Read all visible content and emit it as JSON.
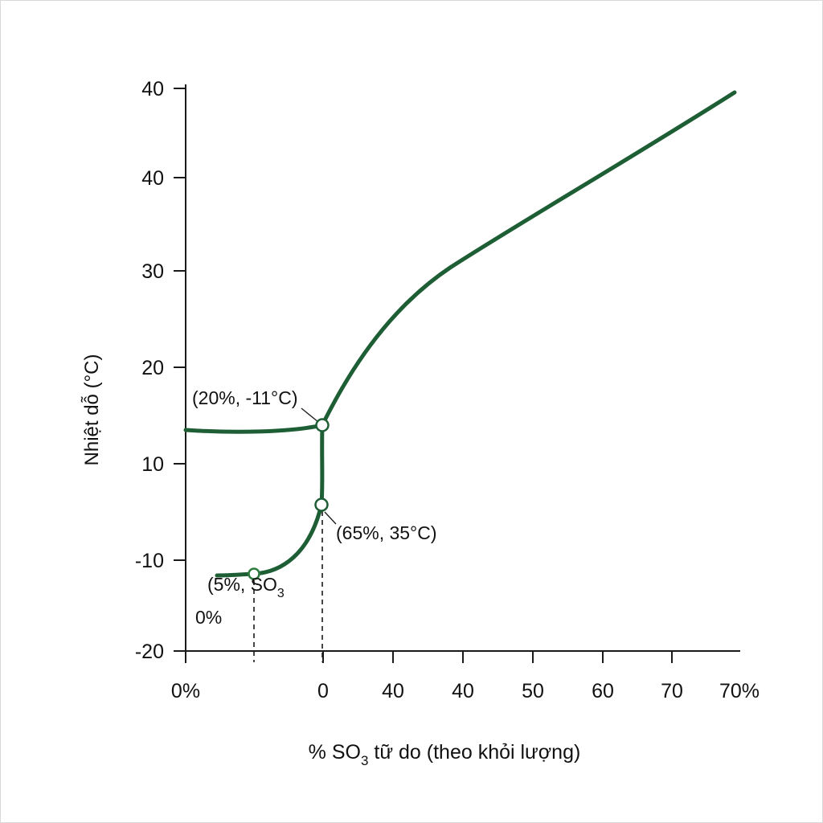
{
  "chart_data": {
    "type": "line",
    "xlabel_parts": {
      "pre": "% SO",
      "sub": "3",
      "post": " tữ do (theo khỏi lượng)"
    },
    "ylabel": "Nhiệt dỗ (°C)",
    "y_ticks": [
      "40",
      "40",
      "30",
      "20",
      "10",
      "-10",
      "-20"
    ],
    "x_ticks": [
      "0%",
      "",
      "0",
      "40",
      "40",
      "50",
      "60",
      "70",
      "70%"
    ],
    "annotations": {
      "upper_point": "(20%, -11°C)",
      "middle_point": "(65%, 35°C)",
      "lower_point_pre": "(5%, SO",
      "lower_point_sub": "3",
      "lower_extra": "0%"
    },
    "grid": false,
    "colors": {
      "curve": "#1e5e35",
      "axis": "#1a1a1a"
    }
  }
}
